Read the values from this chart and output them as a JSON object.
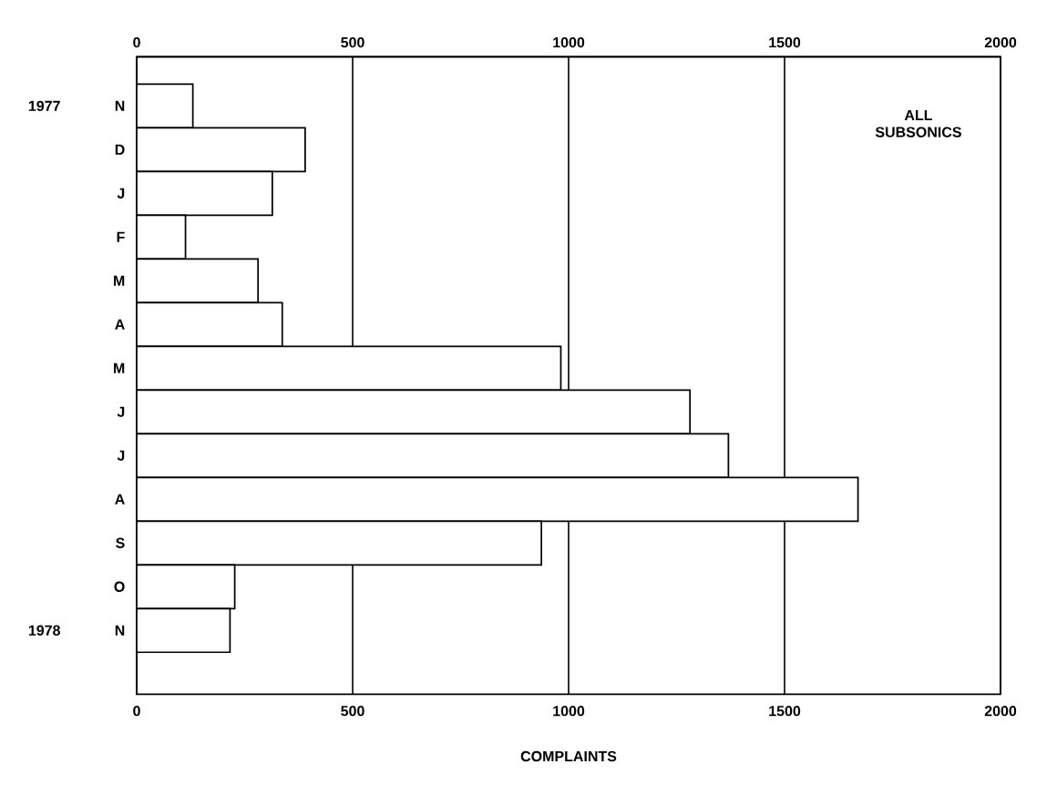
{
  "chart_data": {
    "type": "bar",
    "orientation": "horizontal",
    "xlabel": "COMPLAINTS",
    "categories": [
      "N",
      "D",
      "J",
      "F",
      "M",
      "A",
      "M",
      "J",
      "J",
      "A",
      "S",
      "O",
      "N"
    ],
    "values": [
      130,
      390,
      314,
      113,
      281,
      337,
      982,
      1281,
      1370,
      1670,
      937,
      227,
      216
    ],
    "color": "#ffffff",
    "xlim": [
      0,
      2000
    ],
    "xticks": [
      0,
      500,
      1000,
      1500,
      2000
    ],
    "x2lim": [
      0,
      2000
    ],
    "x2ticks": [
      0,
      500,
      1000,
      1500,
      2000
    ],
    "grid": "x",
    "annotations": [
      "1977",
      "1978",
      "ALL SUBSONICS"
    ]
  }
}
